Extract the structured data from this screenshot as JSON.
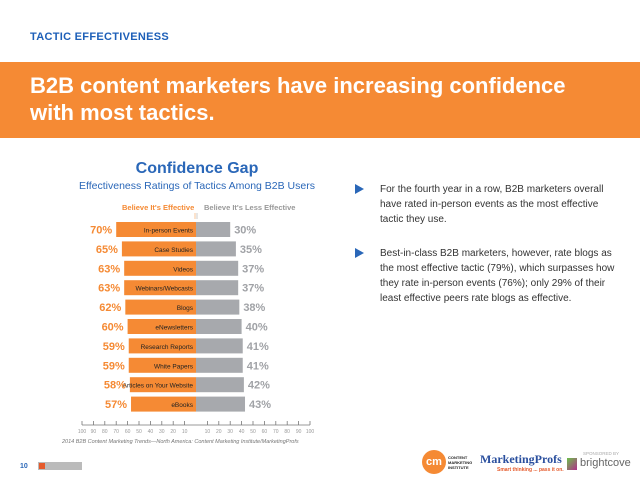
{
  "section_label": "TACTIC EFFECTIVENESS",
  "headline": "B2B content marketers have increasing confidence with most tactics.",
  "chart_data": {
    "type": "bar",
    "title": "Confidence Gap",
    "subtitle": "Effectiveness Ratings of Tactics Among B2B Users",
    "categories": [
      "In-person Events",
      "Case Studies",
      "Videos",
      "Webinars/Webcasts",
      "Blogs",
      "eNewsletters",
      "Research Reports",
      "White Papers",
      "Articles on Your Website",
      "eBooks"
    ],
    "series": [
      {
        "name": "Believe It's Effective",
        "color": "#f58a34",
        "values": [
          70,
          65,
          63,
          63,
          62,
          60,
          59,
          59,
          58,
          57
        ],
        "labels": [
          "70%",
          "65%",
          "63%",
          "63%",
          "62%",
          "60%",
          "59%",
          "59%",
          "58%",
          "57%"
        ]
      },
      {
        "name": "Believe It's Less Effective",
        "color": "#a7a9ad",
        "values": [
          30,
          35,
          37,
          37,
          38,
          40,
          41,
          41,
          42,
          43
        ],
        "labels": [
          "30%",
          "35%",
          "37%",
          "37%",
          "38%",
          "40%",
          "41%",
          "41%",
          "42%",
          "43%"
        ]
      }
    ],
    "x_ticks": [
      "100",
      "90",
      "80",
      "70",
      "60",
      "50",
      "40",
      "30",
      "20",
      "10",
      "10",
      "20",
      "30",
      "40",
      "50",
      "60",
      "70",
      "80",
      "90",
      "100"
    ],
    "xlim": [
      -100,
      100
    ],
    "orientation": "horizontal diverging",
    "source": "2014 B2B Content Marketing Trends—North America: Content Marketing Institute/MarketingProfs"
  },
  "bullets": [
    "For the fourth year in a row, B2B marketers overall have rated in-person events as the most effective tactic they use.",
    "Best-in-class B2B marketers, however, rate blogs as the most effective tactic (79%), which surpasses how they rate in-person events (76%); only 29% of their least effective peers rate blogs as effective."
  ],
  "footer": {
    "page_number": "10",
    "sponsor_label": "SPONSORED BY",
    "logos": [
      "CONTENT MARKETING INSTITUTE",
      "MarketingProfs",
      "Smart thinking ... pass it on.",
      "brightcove"
    ]
  }
}
